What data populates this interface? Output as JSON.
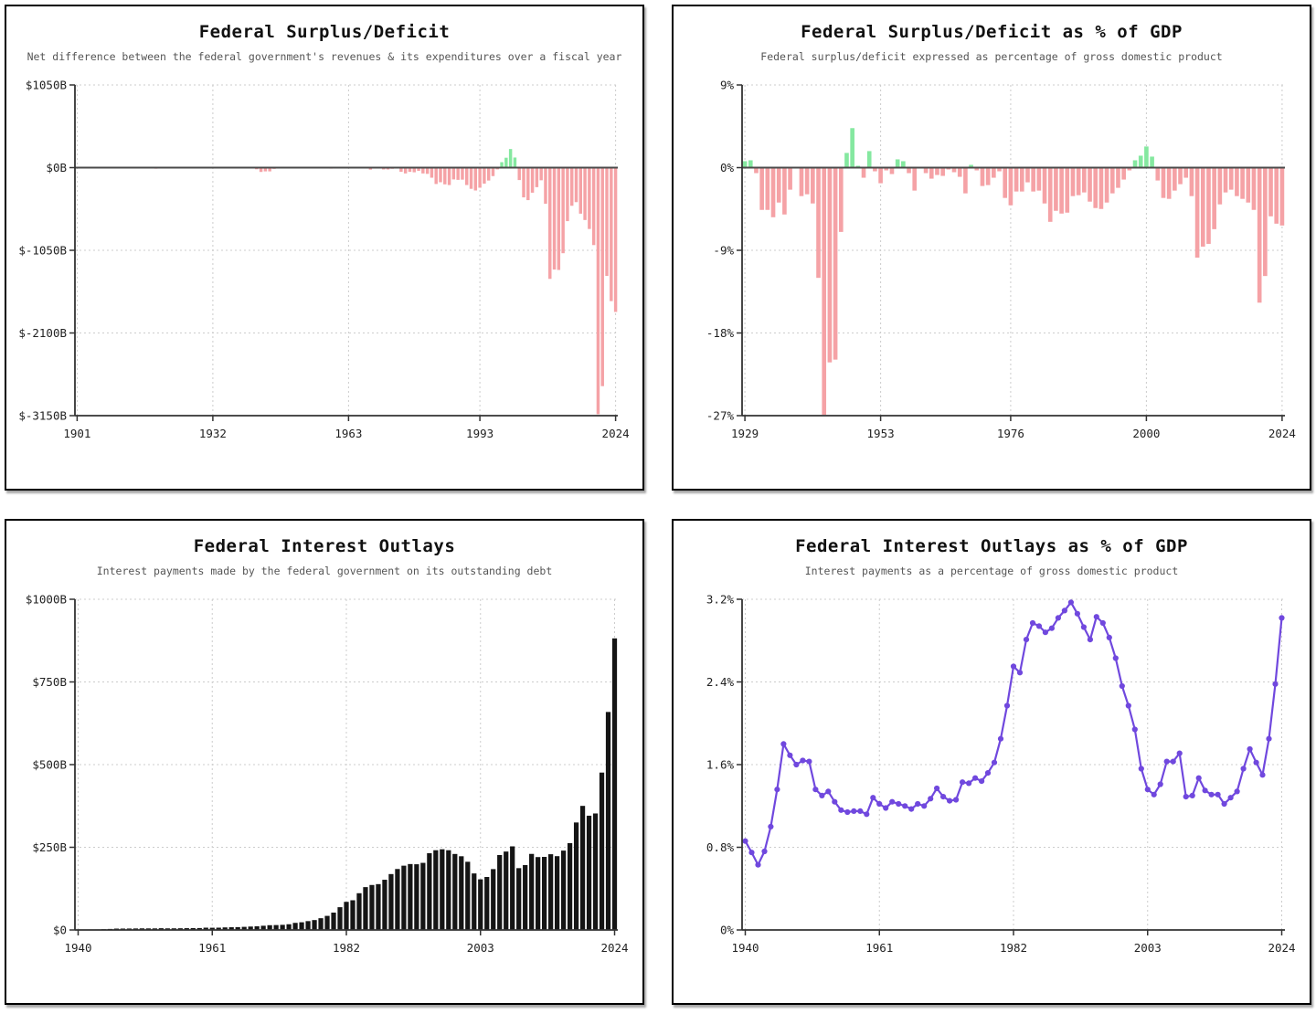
{
  "palette": {
    "axis": "#333333",
    "grid": "#cccccc",
    "zero_line": "#4a4a4a",
    "tick_label": "#222222",
    "title": "#111111",
    "subtitle": "#555555",
    "surplus_green": "#85e8a0",
    "deficit_pink": "#f5a2a6",
    "outlay_black": "#151515",
    "line_purple": "#7048de"
  },
  "chart_data": [
    {
      "id": "federal-surplus-deficit",
      "type": "bar",
      "title": "Federal Surplus/Deficit",
      "subtitle": "Net difference between the federal government's revenues & its expenditures over a fiscal year",
      "unit": "billions of dollars",
      "x_start": 1901,
      "x_end": 2024,
      "values": [
        0.1,
        0.1,
        0,
        0,
        0,
        0,
        0.1,
        -0.1,
        -0.1,
        0,
        0,
        0,
        0,
        0,
        -0.1,
        0,
        -0.9,
        -9,
        -13.4,
        0.3,
        0.5,
        0.7,
        0.7,
        1,
        0.7,
        0.9,
        1.2,
        0.9,
        0.7,
        0.7,
        -0.5,
        -2.7,
        -2.6,
        -3.6,
        -2.8,
        -4.3,
        -2.2,
        -0.1,
        -2.8,
        -2.9,
        -4.9,
        -20.5,
        -54.6,
        -47.6,
        -47.6,
        -15.9,
        4,
        11.8,
        0.6,
        -3.1,
        6.1,
        -1.5,
        -6.5,
        -1.2,
        -3,
        3.9,
        3.4,
        -2.8,
        -12.8,
        0.3,
        -3.3,
        -7.1,
        -4.8,
        -5.9,
        -1.4,
        -3.7,
        -8.6,
        -25.2,
        3.2,
        -2.8,
        -23,
        -23.4,
        -14.9,
        -6.1,
        -53.2,
        -73.7,
        -53.7,
        -59.2,
        -40.7,
        -73.8,
        -79,
        -128,
        -207.8,
        -185.4,
        -212.3,
        -221.2,
        -149.7,
        -155.2,
        -152.6,
        -221,
        -269.2,
        -290.3,
        -255.1,
        -203.2,
        -164,
        -107.4,
        -21.9,
        69.3,
        125.6,
        236.2,
        128.2,
        -157.8,
        -377.6,
        -412.7,
        -318.3,
        -248.2,
        -160.7,
        -458.6,
        -1412.7,
        -1294.4,
        -1299.6,
        -1087,
        -679.5,
        -484.6,
        -438.5,
        -584.7,
        -665.4,
        -779.1,
        -983.6,
        -3131.9,
        -2775.3,
        -1375.4,
        -1695.2,
        -1832.8
      ],
      "ylim": [
        -3150,
        1050
      ],
      "ytick_values": [
        1050,
        0,
        -1050,
        -2100,
        -3150
      ],
      "ytick_labels": [
        "$1050B",
        "$0B",
        "$-1050B",
        "$-2100B",
        "$-3150B"
      ],
      "xtick_values": [
        1901,
        1932,
        1963,
        1993,
        2024
      ],
      "xtick_labels": [
        "1901",
        "1932",
        "1963",
        "1993",
        "2024"
      ],
      "bar_frac": 0.72,
      "zero_line": true,
      "grid": true,
      "colors": {
        "positive": "#85e8a0",
        "negative": "#f5a2a6"
      }
    },
    {
      "id": "federal-surplus-deficit-pct-gdp",
      "type": "bar",
      "title": "Federal Surplus/Deficit as % of GDP",
      "subtitle": "Federal surplus/deficit expressed as percentage of gross domestic product",
      "unit": "percent of GDP",
      "x_start": 1929,
      "x_end": 2024,
      "values": [
        0.7,
        0.8,
        -0.6,
        -4.6,
        -4.6,
        -5.4,
        -3.8,
        -5.1,
        -2.4,
        -0.1,
        -3.1,
        -2.9,
        -3.9,
        -12,
        -26.9,
        -21.2,
        -20.9,
        -7,
        1.6,
        4.3,
        0.2,
        -1.1,
        1.8,
        -0.4,
        -1.7,
        -0.3,
        -0.7,
        0.9,
        0.7,
        -0.6,
        -2.5,
        0.1,
        -0.6,
        -1.2,
        -0.8,
        -0.9,
        -0.2,
        -0.5,
        -1,
        -2.8,
        0.3,
        -0.3,
        -2,
        -1.9,
        -1.1,
        -0.4,
        -3.3,
        -4.1,
        -2.6,
        -2.6,
        -1.6,
        -2.6,
        -2.5,
        -3.9,
        -5.9,
        -4.7,
        -5,
        -4.9,
        -3.1,
        -3,
        -2.7,
        -3.7,
        -4.4,
        -4.5,
        -3.8,
        -2.8,
        -2.2,
        -1.3,
        -0.3,
        0.8,
        1.3,
        2.3,
        1.2,
        -1.4,
        -3.3,
        -3.4,
        -2.5,
        -1.8,
        -1.1,
        -3.1,
        -9.8,
        -8.6,
        -8.3,
        -6.7,
        -4,
        -2.7,
        -2.4,
        -3.1,
        -3.4,
        -3.8,
        -4.6,
        -14.7,
        -11.8,
        -5.3,
        -6.1,
        -6.3
      ],
      "ylim": [
        -27,
        9
      ],
      "ytick_values": [
        9,
        0,
        -9,
        -18,
        -27
      ],
      "ytick_labels": [
        "9%",
        "0%",
        "-9%",
        "-18%",
        "-27%"
      ],
      "xtick_values": [
        1929,
        1953,
        1976,
        2000,
        2024
      ],
      "xtick_labels": [
        "1929",
        "1953",
        "1976",
        "2000",
        "2024"
      ],
      "bar_frac": 0.75,
      "zero_line": true,
      "grid": true,
      "colors": {
        "positive": "#85e8a0",
        "negative": "#f5a2a6"
      }
    },
    {
      "id": "federal-interest-outlays",
      "type": "bar",
      "title": "Federal Interest Outlays",
      "subtitle": "Interest payments made by the federal government on its outstanding debt",
      "unit": "billions of dollars",
      "x_start": 1940,
      "x_end": 2024,
      "values": [
        0.9,
        0.9,
        1.1,
        1.5,
        2.2,
        3.1,
        4.1,
        4.2,
        4.3,
        4.5,
        4.8,
        4.7,
        4.7,
        5.2,
        4.8,
        4.9,
        5.1,
        5.4,
        5.6,
        5.8,
        6.9,
        6.7,
        6.9,
        7.7,
        8.2,
        8.6,
        9.4,
        10.3,
        11.1,
        12.7,
        14.4,
        14.8,
        15.5,
        17.3,
        21.4,
        23.2,
        26.7,
        29.9,
        35.5,
        42.6,
        52.5,
        68.8,
        85,
        89.8,
        111.1,
        129.5,
        136,
        138.6,
        151.8,
        169,
        184.3,
        194.4,
        199.3,
        198.7,
        202.9,
        232.1,
        241.1,
        244,
        241.1,
        229.8,
        222.9,
        206.2,
        170.9,
        153.1,
        160.2,
        184,
        226.6,
        237.1,
        252.8,
        186.9,
        196.2,
        230,
        220.4,
        220.9,
        229,
        223.2,
        240,
        262.6,
        325,
        375.2,
        345.5,
        352.3,
        475.9,
        659.2,
        881.7
      ],
      "ylim": [
        0,
        1000
      ],
      "ytick_values": [
        1000,
        750,
        500,
        250,
        0
      ],
      "ytick_labels": [
        "$1000B",
        "$750B",
        "$500B",
        "$250B",
        "$0"
      ],
      "xtick_values": [
        1940,
        1961,
        1982,
        2003,
        2024
      ],
      "xtick_labels": [
        "1940",
        "1961",
        "1982",
        "2003",
        "2024"
      ],
      "bar_frac": 0.75,
      "zero_line": false,
      "grid": true,
      "colors": {
        "positive": "#151515",
        "negative": "#151515"
      }
    },
    {
      "id": "federal-interest-outlays-pct-gdp",
      "type": "line",
      "title": "Federal Interest Outlays as % of GDP",
      "subtitle": "Interest payments as a percentage of gross domestic product",
      "unit": "percent of GDP",
      "x_start": 1940,
      "x_end": 2024,
      "values": [
        0.86,
        0.75,
        0.63,
        0.76,
        1.0,
        1.36,
        1.8,
        1.69,
        1.6,
        1.64,
        1.63,
        1.36,
        1.3,
        1.34,
        1.24,
        1.16,
        1.14,
        1.15,
        1.15,
        1.12,
        1.28,
        1.22,
        1.18,
        1.24,
        1.22,
        1.2,
        1.17,
        1.22,
        1.2,
        1.27,
        1.37,
        1.29,
        1.25,
        1.26,
        1.43,
        1.42,
        1.47,
        1.44,
        1.52,
        1.62,
        1.85,
        2.17,
        2.55,
        2.49,
        2.81,
        2.97,
        2.94,
        2.88,
        2.92,
        3.02,
        3.09,
        3.17,
        3.06,
        2.93,
        2.81,
        3.03,
        2.97,
        2.83,
        2.63,
        2.36,
        2.17,
        1.94,
        1.56,
        1.36,
        1.31,
        1.41,
        1.63,
        1.63,
        1.71,
        1.29,
        1.3,
        1.47,
        1.35,
        1.31,
        1.31,
        1.22,
        1.28,
        1.34,
        1.56,
        1.75,
        1.62,
        1.5,
        1.85,
        2.38,
        3.02
      ],
      "ylim": [
        0,
        3.2
      ],
      "ytick_values": [
        3.2,
        2.4,
        1.6,
        0.8,
        0
      ],
      "ytick_labels": [
        "3.2%",
        "2.4%",
        "1.6%",
        "0.8%",
        "0%"
      ],
      "xtick_values": [
        1940,
        1961,
        1982,
        2003,
        2024
      ],
      "xtick_labels": [
        "1940",
        "1961",
        "1982",
        "2003",
        "2024"
      ],
      "zero_line": false,
      "grid": true,
      "colors": {
        "line": "#7048de"
      }
    }
  ]
}
